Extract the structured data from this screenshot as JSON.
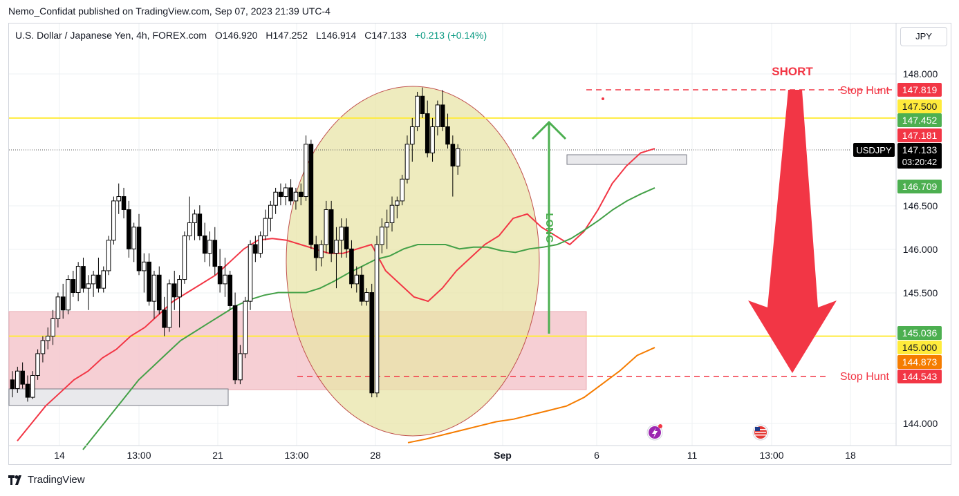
{
  "header": {
    "publisher_line": "Nemo_Confidat published on TradingView.com, Sep 07, 2023 21:39 UTC-4"
  },
  "legend": {
    "symbol": "U.S. Dollar / Japanese Yen, 4h, FOREX.com",
    "open_label": "O",
    "open": "146.920",
    "high_label": "H",
    "high": "147.252",
    "low_label": "L",
    "low": "146.914",
    "close_label": "C",
    "close": "147.133",
    "change": "+0.213 (+0.14%)"
  },
  "currency_button": "JPY",
  "footer": {
    "brand": "TradingView"
  },
  "colors": {
    "up_candle": "#ffffff",
    "down_candle": "#000000",
    "ema_fast": "#f23645",
    "ema_mid": "#43a047",
    "ema_slow": "#f57c00",
    "level_line": "#ffeb3b",
    "short_arrow": "#f23645",
    "long_arrow": "#4caf50",
    "ellipse_fill": "#e8e4a8",
    "zone_fill": "#f4c7cc"
  },
  "chart_data": {
    "type": "candlestick",
    "symbol": "USDJPY",
    "interval": "4h",
    "y_axis": {
      "ticks": [
        "148.000",
        "146.500",
        "146.000",
        "145.500",
        "144.000"
      ],
      "range": [
        143.75,
        148.3
      ]
    },
    "x_axis": {
      "ticks": [
        "14",
        "13:00",
        "21",
        "13:00",
        "28",
        "Sep",
        "6",
        "11",
        "13:00",
        "18"
      ]
    },
    "horizontal_levels": [
      147.5,
      145.0
    ],
    "stop_hunt_levels": [
      147.819,
      144.543
    ],
    "annotations": {
      "short_label": "SHORT",
      "long_label": "LONG",
      "stop_hunt_label": "Stop Hunt"
    },
    "price_labels": [
      {
        "value": "147.819",
        "bg": "#f23645",
        "fg": "#ffffff"
      },
      {
        "value": "147.500",
        "bg": "#ffeb3b",
        "fg": "#131722"
      },
      {
        "value": "147.452",
        "bg": "#4caf50",
        "fg": "#ffffff"
      },
      {
        "value": "147.181",
        "bg": "#f23645",
        "fg": "#ffffff"
      },
      {
        "value": "147.133",
        "bg": "#131722",
        "fg": "#ffffff"
      },
      {
        "value": "146.709",
        "bg": "#4caf50",
        "fg": "#ffffff"
      },
      {
        "value": "145.036",
        "bg": "#4caf50",
        "fg": "#ffffff"
      },
      {
        "value": "145.000",
        "bg": "#ffeb3b",
        "fg": "#131722"
      },
      {
        "value": "144.873",
        "bg": "#f57c00",
        "fg": "#ffffff"
      },
      {
        "value": "144.543",
        "bg": "#f23645",
        "fg": "#ffffff"
      }
    ],
    "current_price": {
      "symbol_tag": "USDJPY",
      "value": "147.133",
      "countdown": "03:20:42"
    },
    "ohlc": [
      [
        144.5,
        144.6,
        144.3,
        144.4
      ],
      [
        144.4,
        144.65,
        144.35,
        144.6
      ],
      [
        144.6,
        144.7,
        144.4,
        144.45
      ],
      [
        144.45,
        144.55,
        144.25,
        144.3
      ],
      [
        144.3,
        144.6,
        144.28,
        144.55
      ],
      [
        144.55,
        144.85,
        144.5,
        144.8
      ],
      [
        144.8,
        145.0,
        144.7,
        144.95
      ],
      [
        144.95,
        145.1,
        144.85,
        145.0
      ],
      [
        145.0,
        145.3,
        144.9,
        145.2
      ],
      [
        145.2,
        145.5,
        145.1,
        145.45
      ],
      [
        145.45,
        145.6,
        145.2,
        145.3
      ],
      [
        145.3,
        145.7,
        145.25,
        145.65
      ],
      [
        145.65,
        145.75,
        145.45,
        145.5
      ],
      [
        145.5,
        145.85,
        145.4,
        145.8
      ],
      [
        145.8,
        145.9,
        145.5,
        145.55
      ],
      [
        145.55,
        145.7,
        145.3,
        145.6
      ],
      [
        145.6,
        145.75,
        145.45,
        145.7
      ],
      [
        145.7,
        145.9,
        145.5,
        145.55
      ],
      [
        145.55,
        145.8,
        145.5,
        145.75
      ],
      [
        145.75,
        146.15,
        145.7,
        146.1
      ],
      [
        146.1,
        146.6,
        146.05,
        146.55
      ],
      [
        146.55,
        146.75,
        146.4,
        146.6
      ],
      [
        146.6,
        146.7,
        146.35,
        146.45
      ],
      [
        146.45,
        146.55,
        145.9,
        146.0
      ],
      [
        146.0,
        146.3,
        145.85,
        146.25
      ],
      [
        146.25,
        146.4,
        145.7,
        145.75
      ],
      [
        145.75,
        145.95,
        145.5,
        145.85
      ],
      [
        145.85,
        145.95,
        145.35,
        145.4
      ],
      [
        145.4,
        145.75,
        145.2,
        145.7
      ],
      [
        145.7,
        145.8,
        145.25,
        145.3
      ],
      [
        145.3,
        145.45,
        145.0,
        145.1
      ],
      [
        145.1,
        145.65,
        145.05,
        145.6
      ],
      [
        145.6,
        145.75,
        145.3,
        145.45
      ],
      [
        145.45,
        145.7,
        145.1,
        145.65
      ],
      [
        145.65,
        146.2,
        145.6,
        146.15
      ],
      [
        146.15,
        146.6,
        146.1,
        146.3
      ],
      [
        146.3,
        146.45,
        146.1,
        146.4
      ],
      [
        146.4,
        146.5,
        146.1,
        146.15
      ],
      [
        146.15,
        146.3,
        145.85,
        145.95
      ],
      [
        145.95,
        146.2,
        145.8,
        146.1
      ],
      [
        146.1,
        146.25,
        145.7,
        145.8
      ],
      [
        145.8,
        146.0,
        145.5,
        145.6
      ],
      [
        145.6,
        145.9,
        145.45,
        145.7
      ],
      [
        145.7,
        145.75,
        145.3,
        145.35
      ],
      [
        145.35,
        145.5,
        144.45,
        144.5
      ],
      [
        144.5,
        144.9,
        144.45,
        144.8
      ],
      [
        144.8,
        145.45,
        144.75,
        145.4
      ],
      [
        145.4,
        146.1,
        145.3,
        146.05
      ],
      [
        146.05,
        146.15,
        145.85,
        145.95
      ],
      [
        145.95,
        146.2,
        145.9,
        146.15
      ],
      [
        146.15,
        146.45,
        146.1,
        146.35
      ],
      [
        146.35,
        146.55,
        146.2,
        146.5
      ],
      [
        146.5,
        146.7,
        146.4,
        146.65
      ],
      [
        146.65,
        146.75,
        146.5,
        146.6
      ],
      [
        146.6,
        146.75,
        146.5,
        146.7
      ],
      [
        146.7,
        146.8,
        146.5,
        146.55
      ],
      [
        146.55,
        146.7,
        146.45,
        146.65
      ],
      [
        146.65,
        146.75,
        146.5,
        146.6
      ],
      [
        146.6,
        147.3,
        146.55,
        147.2
      ],
      [
        147.2,
        147.25,
        146.0,
        146.05
      ],
      [
        146.05,
        146.15,
        145.75,
        145.9
      ],
      [
        145.9,
        146.1,
        145.8,
        146.05
      ],
      [
        146.05,
        146.55,
        145.95,
        146.45
      ],
      [
        146.45,
        146.55,
        145.85,
        145.95
      ],
      [
        145.95,
        146.25,
        145.55,
        146.1
      ],
      [
        146.1,
        146.35,
        145.9,
        146.25
      ],
      [
        146.25,
        146.35,
        145.9,
        146.0
      ],
      [
        146.0,
        146.1,
        145.55,
        145.6
      ],
      [
        145.6,
        145.8,
        145.5,
        145.7
      ],
      [
        145.7,
        145.8,
        145.35,
        145.4
      ],
      [
        145.4,
        145.55,
        145.35,
        145.5
      ],
      [
        145.5,
        145.6,
        144.3,
        144.35
      ],
      [
        144.35,
        146.15,
        144.3,
        146.05
      ],
      [
        146.05,
        146.35,
        145.95,
        146.25
      ],
      [
        146.25,
        146.45,
        146.0,
        146.3
      ],
      [
        146.3,
        146.6,
        146.2,
        146.5
      ],
      [
        146.5,
        146.6,
        146.35,
        146.55
      ],
      [
        146.55,
        146.85,
        146.5,
        146.8
      ],
      [
        146.8,
        147.3,
        146.75,
        147.2
      ],
      [
        147.2,
        147.5,
        147.0,
        147.4
      ],
      [
        147.4,
        147.8,
        147.35,
        147.75
      ],
      [
        147.75,
        147.85,
        147.5,
        147.55
      ],
      [
        147.55,
        147.7,
        147.05,
        147.1
      ],
      [
        147.1,
        147.5,
        147.0,
        147.4
      ],
      [
        147.4,
        147.7,
        147.3,
        147.65
      ],
      [
        147.65,
        147.82,
        147.35,
        147.4
      ],
      [
        147.4,
        147.55,
        147.15,
        147.2
      ],
      [
        147.2,
        147.3,
        146.6,
        146.95
      ],
      [
        146.95,
        147.2,
        146.85,
        147.15
      ]
    ],
    "ema_fast": [
      143.8,
      144.0,
      144.2,
      144.35,
      144.5,
      144.6,
      144.75,
      144.85,
      145.0,
      145.1,
      145.25,
      145.4,
      145.5,
      145.6,
      145.7,
      145.85,
      146.0,
      146.1,
      146.12,
      146.1,
      146.05,
      146.0,
      145.95,
      145.95,
      146.0,
      146.05,
      145.75,
      145.6,
      145.45,
      145.4,
      145.55,
      145.75,
      145.9,
      146.05,
      146.15,
      146.35,
      146.4,
      146.25,
      146.15,
      146.05,
      146.2,
      146.45,
      146.75,
      146.95,
      147.1,
      147.15
    ],
    "ema_mid": [
      143.7,
      143.9,
      144.1,
      144.3,
      144.5,
      144.65,
      144.8,
      144.95,
      145.05,
      145.15,
      145.25,
      145.35,
      145.42,
      145.47,
      145.5,
      145.5,
      145.5,
      145.55,
      145.63,
      145.72,
      145.8,
      145.88,
      145.92,
      146.0,
      146.05,
      146.05,
      146.05,
      146.0,
      146.02,
      146.02,
      145.98,
      145.96,
      146.0,
      146.02,
      146.05,
      146.12,
      146.22,
      146.33,
      146.45,
      146.55,
      146.63,
      146.7
    ],
    "ema_slow": [
      143.78,
      143.82,
      143.87,
      143.92,
      143.97,
      144.02,
      144.05,
      144.1,
      144.15,
      144.2,
      144.3,
      144.45,
      144.6,
      144.78,
      144.87
    ]
  }
}
